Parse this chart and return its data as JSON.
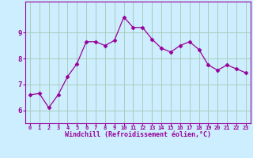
{
  "x": [
    0,
    1,
    2,
    3,
    4,
    5,
    6,
    7,
    8,
    9,
    10,
    11,
    12,
    13,
    14,
    15,
    16,
    17,
    18,
    19,
    20,
    21,
    22,
    23
  ],
  "y": [
    6.6,
    6.65,
    6.1,
    6.6,
    7.3,
    7.8,
    8.65,
    8.65,
    8.5,
    8.7,
    9.6,
    9.2,
    9.2,
    8.75,
    8.4,
    8.25,
    8.5,
    8.65,
    8.35,
    7.75,
    7.55,
    7.75,
    7.6,
    7.45
  ],
  "line_color": "#990099",
  "marker": "D",
  "marker_size": 2.5,
  "bg_color": "#cceeff",
  "grid_color": "#aaccbb",
  "xlabel": "Windchill (Refroidissement éolien,°C)",
  "xlabel_color": "#990099",
  "tick_color": "#990099",
  "ylim": [
    5.5,
    10.2
  ],
  "xlim": [
    -0.5,
    23.5
  ],
  "yticks": [
    6,
    7,
    8,
    9
  ],
  "xtick_labels": [
    "0",
    "1",
    "2",
    "3",
    "4",
    "5",
    "6",
    "7",
    "8",
    "9",
    "10",
    "11",
    "12",
    "13",
    "14",
    "15",
    "16",
    "17",
    "18",
    "19",
    "20",
    "21",
    "22",
    "23"
  ]
}
